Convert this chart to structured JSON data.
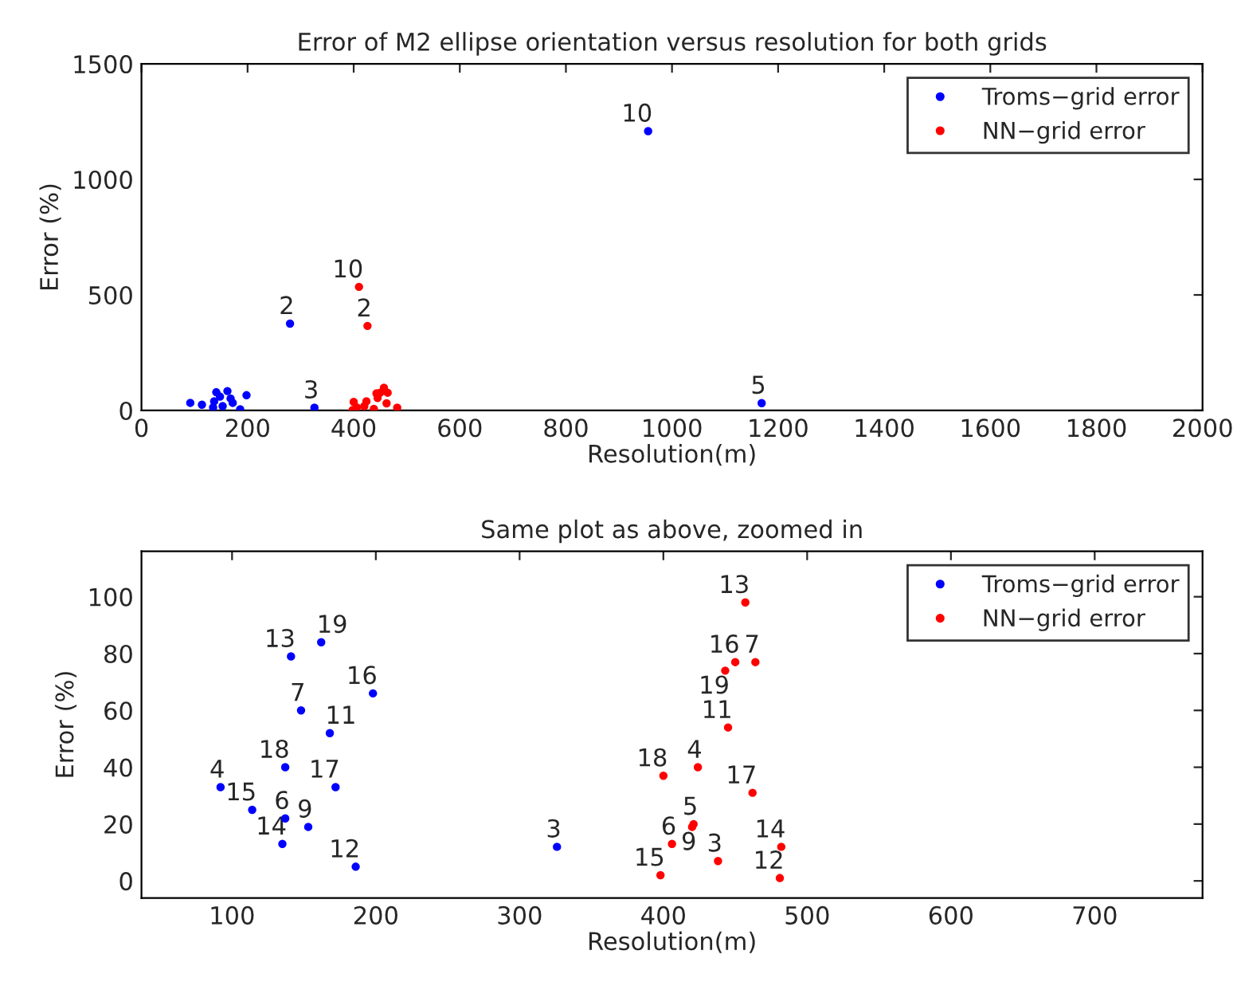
{
  "chart_data": [
    {
      "type": "scatter",
      "title": "Error of M2 ellipse orientation versus resolution for both grids",
      "xlabel": "Resolution(m)",
      "ylabel": "Error (%)",
      "xlim": [
        0,
        2000
      ],
      "xticks": [
        0,
        200,
        400,
        600,
        800,
        1000,
        1200,
        1400,
        1600,
        1800,
        2000
      ],
      "ylim": [
        0,
        1500
      ],
      "yticks": [
        0,
        500,
        1000,
        1500
      ],
      "grid": false,
      "legend": "top right",
      "marker": "circle",
      "series": [
        {
          "name": "Troms−grid error",
          "color": "#0000ff",
          "x": [
            280,
            326,
            92,
            1169,
            148,
            153,
            955,
            168,
            186,
            141,
            135,
            114,
            198,
            172,
            137,
            162
          ],
          "values": [
            376,
            12,
            33,
            32,
            60,
            19,
            1209,
            52,
            5,
            79,
            13,
            25,
            66,
            33,
            40,
            84
          ]
        },
        {
          "name": "NN−grid error",
          "color": "#ff0000",
          "x": [
            426,
            438,
            424,
            406,
            464,
            420,
            410,
            445,
            457,
            482,
            398,
            450,
            462,
            400,
            443
          ],
          "values": [
            366,
            7,
            40,
            13,
            77,
            19,
            535,
            54,
            98,
            12,
            2,
            77,
            31,
            37,
            74
          ]
        }
      ],
      "annotations": [
        {
          "text": "2",
          "x": 280,
          "y": 376
        },
        {
          "text": "3",
          "x": 326,
          "y": 12
        },
        {
          "text": "5",
          "x": 1169,
          "y": 32
        },
        {
          "text": "10",
          "x": 955,
          "y": 1209
        },
        {
          "text": "2",
          "x": 426,
          "y": 366
        },
        {
          "text": "10",
          "x": 410,
          "y": 535
        }
      ]
    },
    {
      "type": "scatter",
      "title": "Same plot as above, zoomed in",
      "xlabel": "Resolution(m)",
      "ylabel": "Error (%)",
      "xlim": [
        37,
        775
      ],
      "xticks": [
        100,
        200,
        300,
        400,
        500,
        600,
        700
      ],
      "ylim": [
        -6,
        116
      ],
      "yticks": [
        0,
        20,
        40,
        60,
        80,
        100
      ],
      "grid": false,
      "legend": "top right",
      "marker": "circle",
      "series": [
        {
          "name": "Troms−grid error",
          "color": "#0000ff",
          "x": [
            326,
            92,
            137,
            148,
            153,
            168,
            186,
            141,
            135,
            114,
            198,
            172,
            137,
            162
          ],
          "values": [
            12,
            33,
            22,
            60,
            19,
            52,
            5,
            79,
            13,
            25,
            66,
            33,
            40,
            84
          ]
        },
        {
          "name": "NN−grid error",
          "color": "#ff0000",
          "x": [
            438,
            424,
            421,
            406,
            464,
            420,
            445,
            481,
            457,
            482,
            398,
            450,
            462,
            400,
            443
          ],
          "values": [
            7,
            40,
            20,
            13,
            77,
            19,
            54,
            1,
            98,
            12,
            2,
            77,
            31,
            37,
            74
          ]
        }
      ],
      "annotations": [
        {
          "text": "3",
          "x": 326,
          "y": 12
        },
        {
          "text": "4",
          "x": 92,
          "y": 33
        },
        {
          "text": "6",
          "x": 137,
          "y": 22
        },
        {
          "text": "7",
          "x": 148,
          "y": 60
        },
        {
          "text": "9",
          "x": 153,
          "y": 19
        },
        {
          "text": "11",
          "x": 168,
          "y": 52
        },
        {
          "text": "12",
          "x": 186,
          "y": 5
        },
        {
          "text": "13",
          "x": 141,
          "y": 79
        },
        {
          "text": "14",
          "x": 135,
          "y": 13
        },
        {
          "text": "15",
          "x": 114,
          "y": 25
        },
        {
          "text": "16",
          "x": 198,
          "y": 66
        },
        {
          "text": "17",
          "x": 172,
          "y": 33
        },
        {
          "text": "18",
          "x": 137,
          "y": 40
        },
        {
          "text": "19",
          "x": 162,
          "y": 84
        },
        {
          "text": "3",
          "x": 438,
          "y": 7
        },
        {
          "text": "4",
          "x": 424,
          "y": 40
        },
        {
          "text": "5",
          "x": 421,
          "y": 20
        },
        {
          "text": "6",
          "x": 406,
          "y": 13
        },
        {
          "text": "7",
          "x": 464,
          "y": 77
        },
        {
          "text": "9",
          "x": 420,
          "y": 19
        },
        {
          "text": "11",
          "x": 445,
          "y": 54
        },
        {
          "text": "12",
          "x": 481,
          "y": 1
        },
        {
          "text": "13",
          "x": 457,
          "y": 98
        },
        {
          "text": "14",
          "x": 482,
          "y": 12
        },
        {
          "text": "15",
          "x": 398,
          "y": 2
        },
        {
          "text": "16",
          "x": 450,
          "y": 77
        },
        {
          "text": "17",
          "x": 462,
          "y": 31
        },
        {
          "text": "18",
          "x": 400,
          "y": 37
        },
        {
          "text": "19",
          "x": 443,
          "y": 74
        }
      ]
    }
  ]
}
